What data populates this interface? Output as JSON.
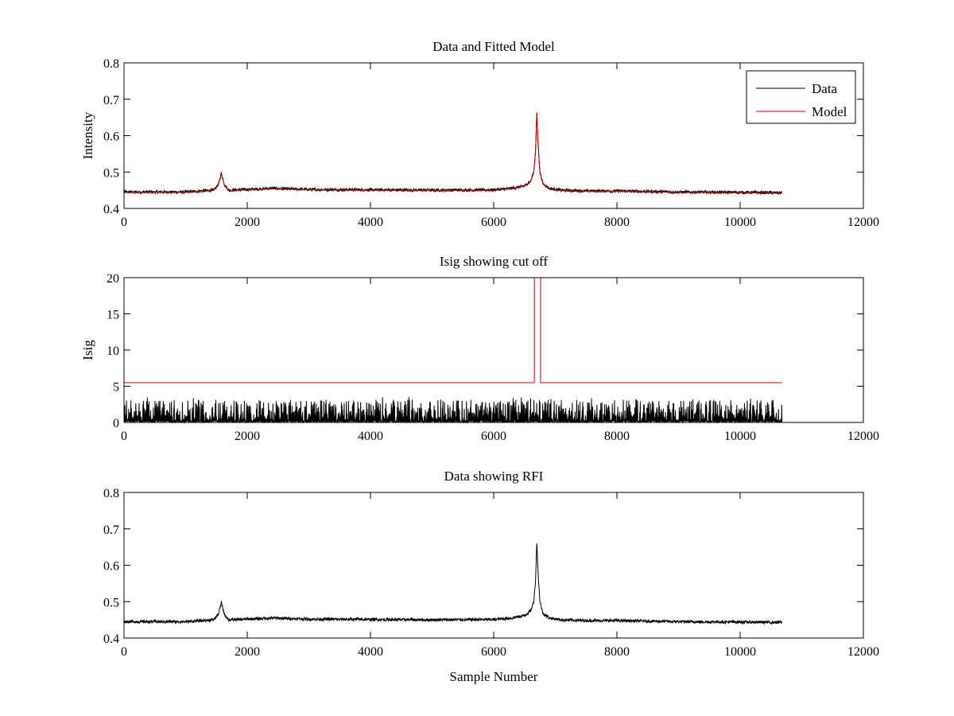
{
  "chart_data": [
    {
      "type": "line",
      "title": "Data and Fitted Model",
      "xlabel": "",
      "ylabel": "Intensity",
      "xlim": [
        0,
        12000
      ],
      "ylim": [
        0.4,
        0.8
      ],
      "x_ticks": [
        0,
        2000,
        4000,
        6000,
        8000,
        10000,
        12000
      ],
      "x_tick_labels": [
        "0",
        "2000",
        "4000",
        "6000",
        "8000",
        "10000",
        "12000"
      ],
      "y_ticks": [
        0.4,
        0.5,
        0.6,
        0.7,
        0.8
      ],
      "y_tick_labels": [
        "0.4",
        "0.5",
        "0.6",
        "0.7",
        "0.8"
      ],
      "legend": {
        "position": "top-right",
        "entries": [
          "Data",
          "Model"
        ]
      },
      "series": [
        {
          "name": "Data",
          "color": "#000000",
          "noise": 0.004,
          "x": [
            0,
            1000,
            1450,
            1530,
            1580,
            1630,
            1700,
            2000,
            2400,
            3000,
            4000,
            5000,
            6000,
            6300,
            6500,
            6600,
            6650,
            6680,
            6700,
            6720,
            6750,
            6800,
            6900,
            7100,
            7500,
            8000,
            9000,
            10000,
            10680
          ],
          "y": [
            0.445,
            0.445,
            0.45,
            0.465,
            0.497,
            0.465,
            0.45,
            0.452,
            0.455,
            0.452,
            0.451,
            0.45,
            0.451,
            0.455,
            0.462,
            0.475,
            0.5,
            0.56,
            0.667,
            0.58,
            0.5,
            0.468,
            0.455,
            0.45,
            0.448,
            0.448,
            0.445,
            0.444,
            0.443
          ]
        },
        {
          "name": "Model",
          "color": "#cc0000",
          "noise": 0,
          "x": [
            0,
            1000,
            1450,
            1530,
            1580,
            1630,
            1700,
            2000,
            2400,
            3000,
            4000,
            5000,
            6000,
            6300,
            6500,
            6600,
            6650,
            6680,
            6700,
            6720,
            6750,
            6800,
            6900,
            7100,
            7500,
            8000,
            9000,
            10000,
            10680
          ],
          "y": [
            0.444,
            0.444,
            0.449,
            0.464,
            0.495,
            0.464,
            0.449,
            0.451,
            0.454,
            0.451,
            0.45,
            0.449,
            0.45,
            0.454,
            0.461,
            0.474,
            0.499,
            0.56,
            0.668,
            0.58,
            0.499,
            0.467,
            0.454,
            0.449,
            0.447,
            0.447,
            0.444,
            0.443,
            0.442
          ]
        }
      ]
    },
    {
      "type": "line",
      "title": "Isig showing cut off",
      "xlabel": "",
      "ylabel": "Isig",
      "xlim": [
        0,
        12000
      ],
      "ylim": [
        0,
        20
      ],
      "x_ticks": [
        0,
        2000,
        4000,
        6000,
        8000,
        10000,
        12000
      ],
      "x_tick_labels": [
        "0",
        "2000",
        "4000",
        "6000",
        "8000",
        "10000",
        "12000"
      ],
      "y_ticks": [
        0,
        5,
        10,
        15,
        20
      ],
      "y_tick_labels": [
        "0",
        "5",
        "10",
        "15",
        "20"
      ],
      "series": [
        {
          "color": "#000000",
          "style": "noise-band",
          "x": [
            0,
            10680
          ],
          "y_min": 0,
          "y_max": 3.5
        },
        {
          "color": "#cc0000",
          "style": "step",
          "x": [
            0,
            6660,
            6660,
            6760,
            6760,
            10680
          ],
          "y": [
            5.5,
            5.5,
            20,
            20,
            5.5,
            5.5
          ]
        }
      ]
    },
    {
      "type": "line",
      "title": "Data showing RFI",
      "xlabel": "Sample Number",
      "ylabel": "",
      "xlim": [
        0,
        12000
      ],
      "ylim": [
        0.4,
        0.8
      ],
      "x_ticks": [
        0,
        2000,
        4000,
        6000,
        8000,
        10000,
        12000
      ],
      "x_tick_labels": [
        "0",
        "2000",
        "4000",
        "6000",
        "8000",
        "10000",
        "12000"
      ],
      "y_ticks": [
        0.4,
        0.5,
        0.6,
        0.7,
        0.8
      ],
      "y_tick_labels": [
        "0.4",
        "0.5",
        "0.6",
        "0.7",
        "0.8"
      ],
      "series": [
        {
          "color": "#000000",
          "noise": 0.004,
          "x": [
            0,
            1000,
            1450,
            1530,
            1580,
            1630,
            1700,
            2000,
            2400,
            3000,
            4000,
            5000,
            6000,
            6300,
            6500,
            6600,
            6650,
            6680,
            6700,
            6720,
            6750,
            6800,
            6900,
            7100,
            7500,
            8000,
            9000,
            10000,
            10680
          ],
          "y": [
            0.445,
            0.445,
            0.45,
            0.465,
            0.497,
            0.465,
            0.45,
            0.452,
            0.455,
            0.452,
            0.451,
            0.45,
            0.451,
            0.455,
            0.462,
            0.475,
            0.5,
            0.56,
            0.667,
            0.58,
            0.5,
            0.468,
            0.455,
            0.45,
            0.448,
            0.448,
            0.445,
            0.444,
            0.443
          ]
        }
      ]
    }
  ]
}
